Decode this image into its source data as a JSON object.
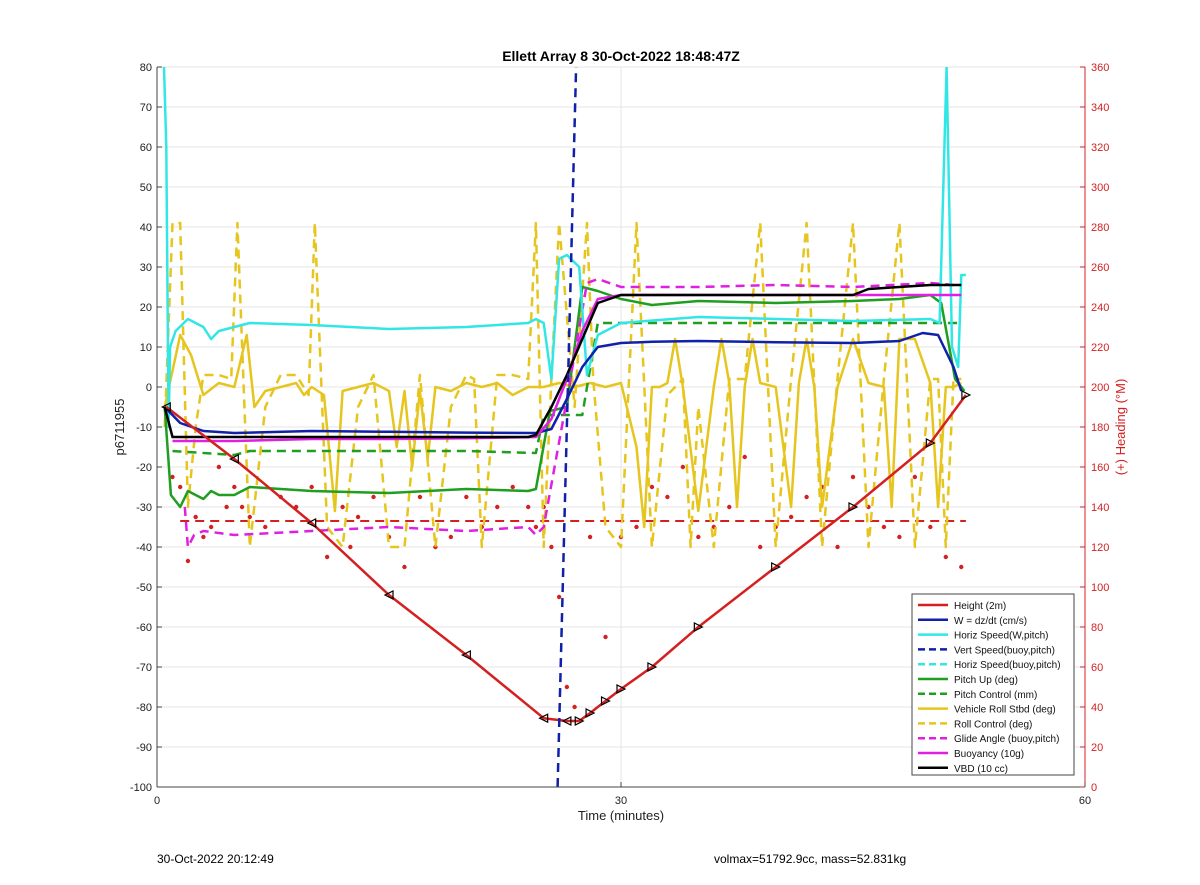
{
  "footer": {
    "date": "30-Oct-2022 20:12:49",
    "mass_info": "volmax=51792.9cc, mass=52.831kg"
  },
  "chart_data": {
    "type": "line",
    "title": "Ellett Array 8 30-Oct-2022 18:48:47Z",
    "xlabel": "Time (minutes)",
    "ylabel": "p6711955",
    "ylabel_right": "(+) Heading (°M)",
    "xlim": [
      0,
      60
    ],
    "ylim": [
      -100,
      80
    ],
    "ylim_right": [
      0,
      360
    ],
    "x_ticks": [
      0,
      30,
      60
    ],
    "y_ticks": [
      -100,
      -90,
      -80,
      -70,
      -60,
      -50,
      -40,
      -30,
      -20,
      -10,
      0,
      10,
      20,
      30,
      40,
      50,
      60,
      70,
      80
    ],
    "y_ticks_right": [
      0,
      20,
      40,
      60,
      80,
      100,
      120,
      140,
      160,
      180,
      200,
      220,
      240,
      260,
      280,
      300,
      320,
      340,
      360
    ],
    "grid": true,
    "legend_position": "bottom-right",
    "colors": {
      "red": "#d42020",
      "blue": "#1020a8",
      "cyan": "#33e6e6",
      "green": "#1f9e1f",
      "yellow": "#e6c51e",
      "magenta": "#e020e0",
      "black": "#000000",
      "right_axis": "#d42020"
    },
    "series": [
      {
        "name": "Height (2m)",
        "color": "#d42020",
        "style": "solid",
        "markers": "triangle",
        "x": [
          0.6,
          5,
          10,
          15,
          20,
          25,
          26.5,
          27.3,
          28,
          29,
          30,
          32,
          35,
          40,
          45,
          50,
          52.3
        ],
        "y": [
          -5,
          -18,
          -34,
          -52,
          -67,
          -82.8,
          -83.5,
          -83.5,
          -81.5,
          -78.5,
          -75.5,
          -70,
          -60,
          -45,
          -30,
          -14,
          -2
        ]
      },
      {
        "name": "W = dz/dt (cm/s)",
        "color": "#1020a8",
        "style": "solid",
        "x": [
          0.5,
          1.5,
          3,
          5,
          10,
          15,
          20,
          24.5,
          25.5,
          26.5,
          27.5,
          28.5,
          30,
          32,
          35,
          40,
          45,
          48,
          49.5,
          50.5,
          51.5,
          52
        ],
        "y": [
          -5,
          -9,
          -11,
          -11.5,
          -11,
          -11.2,
          -11.4,
          -11.5,
          -10.5,
          -3,
          5,
          10,
          11,
          11.3,
          11.5,
          11.2,
          11,
          11.5,
          13.5,
          13,
          5,
          -1
        ]
      },
      {
        "name": "Horiz Speed(W,pitch)",
        "color": "#33e6e6",
        "style": "solid",
        "x": [
          0.45,
          0.6,
          0.75,
          0.85,
          1.2,
          2,
          3,
          3.5,
          4,
          5,
          6,
          10,
          15,
          20,
          24,
          24.5,
          25,
          25.5,
          26,
          26.5,
          27.3,
          27.8,
          28.5,
          30,
          35,
          40,
          45,
          50,
          50.6,
          51.05,
          51.4,
          51.8,
          52,
          52.3
        ],
        "y": [
          80,
          60,
          -10,
          10,
          14,
          17,
          15,
          12,
          14,
          15,
          16,
          15.5,
          14.5,
          15,
          16,
          17,
          16,
          2,
          32,
          33,
          30,
          3,
          13,
          16,
          17.5,
          17,
          16.5,
          17,
          16,
          80,
          10,
          5,
          28,
          28
        ]
      },
      {
        "name": "Vert Speed(buoy,pitch)",
        "color": "#1020a8",
        "style": "dashed",
        "x": [
          25.9,
          27.1
        ],
        "y": [
          -100,
          80
        ]
      },
      {
        "name": "Horiz Speed(buoy,pitch)",
        "color": "#33e6e6",
        "style": "dashed",
        "x": [],
        "y": []
      },
      {
        "name": "Pitch Up (deg)",
        "color": "#1f9e1f",
        "style": "solid",
        "x": [
          0.5,
          0.9,
          1.5,
          2,
          3,
          3.5,
          4,
          5,
          6,
          10,
          15,
          20,
          24,
          24.5,
          25.4,
          26.5,
          27.5,
          28.5,
          30,
          32,
          35,
          40,
          45,
          48,
          50,
          50.7,
          51.6,
          52.2
        ],
        "y": [
          -5,
          -27,
          -30,
          -26,
          -28,
          -26,
          -27,
          -27,
          -25,
          -26,
          -26.5,
          -25.5,
          -26,
          -25.5,
          -6,
          -5,
          25,
          24,
          22,
          20.5,
          21.5,
          21,
          21.5,
          22,
          23,
          21,
          2,
          -1
        ]
      },
      {
        "name": "Pitch Control (mm)",
        "color": "#1f9e1f",
        "style": "dashed",
        "x": [
          1,
          5,
          6,
          20,
          24.5,
          25,
          27.5,
          28.5,
          52
        ],
        "y": [
          -16,
          -17,
          -16,
          -16,
          -16.5,
          -7,
          -7,
          16,
          16
        ]
      },
      {
        "name": "Vehicle Roll Stbd (deg)",
        "color": "#e6c51e",
        "style": "solid",
        "x": [
          0.5,
          1.5,
          2.2,
          3,
          4,
          5,
          5.8,
          6.3,
          7,
          8,
          9,
          9.5,
          10,
          10.8,
          11.5,
          12,
          13,
          14,
          15,
          15.5,
          16,
          16.5,
          17,
          17.5,
          18,
          19,
          20,
          21,
          22,
          23,
          24,
          25,
          26,
          27,
          28,
          29,
          30,
          31,
          31.5,
          32,
          32.5,
          33,
          33.5,
          34,
          35,
          36,
          36.5,
          37,
          37.5,
          38,
          38.5,
          39,
          40,
          41,
          41.5,
          42,
          42.5,
          43,
          44,
          45,
          46,
          47,
          47.5,
          48,
          49,
          50,
          50.5,
          51,
          51.5,
          52
        ],
        "y": [
          -5,
          13,
          8,
          -2,
          1,
          0,
          13,
          -5,
          -1,
          0,
          1,
          -2,
          0,
          -2,
          -31,
          -1,
          0,
          1,
          -1,
          -15,
          -1,
          -20,
          -1,
          -18,
          0,
          -1,
          1,
          0,
          1,
          -2,
          0,
          0,
          1,
          0,
          1,
          0,
          1,
          -15,
          -35,
          0,
          0,
          1,
          12,
          0,
          -31,
          0,
          12,
          1,
          -30,
          0,
          12,
          1,
          0,
          -30,
          1,
          12,
          0,
          -30,
          0,
          12,
          1,
          0,
          -30,
          12,
          12,
          1,
          -30,
          0,
          0,
          1
        ]
      },
      {
        "name": "Roll Control (deg)",
        "color": "#e6c51e",
        "style": "dashed",
        "x": [
          0.5,
          1,
          1.5,
          2,
          2.5,
          3,
          4,
          4.8,
          5.2,
          6,
          7,
          8,
          9,
          9.8,
          10.2,
          11,
          12,
          13,
          14,
          15,
          16,
          17,
          18,
          19,
          20,
          20.5,
          21,
          22,
          23,
          24,
          24.5,
          25,
          25.5,
          26,
          27,
          27.8,
          28.2,
          29,
          30,
          31,
          32,
          33,
          34,
          34.5,
          35,
          36,
          37,
          38,
          39,
          40,
          41,
          42,
          43,
          44,
          45,
          46,
          47,
          48,
          49,
          50,
          50.5,
          51,
          51.5,
          52
        ],
        "y": [
          -10,
          41,
          41,
          -30,
          -10,
          3,
          3,
          2,
          41,
          -40,
          -5,
          3,
          3,
          -2,
          41,
          -35,
          -40,
          -5,
          3,
          -40,
          -40,
          3,
          -40,
          -5,
          3,
          2,
          -40,
          3,
          3,
          2,
          41,
          -40,
          2,
          41,
          -5,
          41,
          2,
          -35,
          -40,
          41,
          -40,
          -2,
          2,
          -40,
          -5,
          -40,
          2,
          2,
          41,
          -40,
          2,
          41,
          -40,
          2,
          41,
          -40,
          2,
          41,
          -40,
          2,
          2,
          -40,
          2,
          2
        ]
      },
      {
        "name": "Glide Angle (buoy,pitch)",
        "color": "#e020e0",
        "style": "dashed",
        "x": [
          1.8,
          2,
          2.4,
          3,
          5,
          10,
          15,
          20,
          24,
          24.5,
          25,
          26.5,
          27.8,
          28.5,
          30,
          35,
          40,
          45,
          50,
          51.5
        ],
        "y": [
          -30,
          -40,
          -37,
          -36,
          -37,
          -36,
          -35,
          -36,
          -35,
          -37,
          -35,
          -3,
          26,
          27,
          25,
          25,
          25.5,
          25,
          26,
          25.5
        ]
      },
      {
        "name": "Buoyancy (10g)",
        "color": "#e020e0",
        "style": "solid",
        "x": [
          1,
          5,
          10,
          15,
          20,
          24.5,
          25.5,
          26.5,
          27.5,
          28.5,
          30,
          52
        ],
        "y": [
          -13.5,
          -13.5,
          -13,
          -13,
          -12.8,
          -12.5,
          -8,
          2,
          14,
          22,
          23,
          23
        ]
      },
      {
        "name": "VBD (10 cc)",
        "color": "#000000",
        "style": "solid",
        "x": [
          0.5,
          1,
          5,
          10,
          15,
          20,
          24,
          24.5,
          25.5,
          26.5,
          27.5,
          28.5,
          30,
          35,
          40,
          45,
          46,
          48,
          50,
          52
        ],
        "y": [
          -5,
          -12.5,
          -12.5,
          -12.5,
          -12.5,
          -12.5,
          -12.5,
          -12,
          -5,
          3,
          12,
          21,
          23,
          23,
          23,
          23,
          24.5,
          25,
          25.5,
          25.5
        ]
      }
    ],
    "heading_reference": {
      "color": "#d42020",
      "style": "dashed",
      "value_right_axis": 133
    },
    "heading_points": {
      "color": "#d42020",
      "x": [
        1,
        1.5,
        2,
        2.5,
        3,
        3.5,
        4,
        4.5,
        5,
        5.5,
        6,
        7,
        8,
        9,
        10,
        11,
        12,
        12.5,
        13,
        14,
        15,
        16,
        17,
        18,
        19,
        20,
        21,
        22,
        23,
        24,
        24.5,
        25,
        25.5,
        26,
        26.5,
        27,
        28,
        29,
        30,
        31,
        32,
        33,
        34,
        35,
        36,
        37,
        38,
        39,
        40,
        41,
        42,
        43,
        44,
        45,
        46,
        47,
        48,
        49,
        50,
        51,
        52
      ],
      "y": [
        155,
        150,
        113,
        135,
        125,
        130,
        160,
        140,
        150,
        140,
        135,
        130,
        145,
        140,
        150,
        115,
        140,
        120,
        135,
        145,
        125,
        110,
        145,
        120,
        125,
        145,
        130,
        140,
        150,
        140,
        130,
        140,
        120,
        95,
        50,
        40,
        125,
        75,
        125,
        130,
        150,
        145,
        160,
        125,
        130,
        140,
        165,
        120,
        130,
        135,
        145,
        150,
        120,
        155,
        140,
        130,
        125,
        155,
        130,
        115,
        110
      ]
    }
  }
}
